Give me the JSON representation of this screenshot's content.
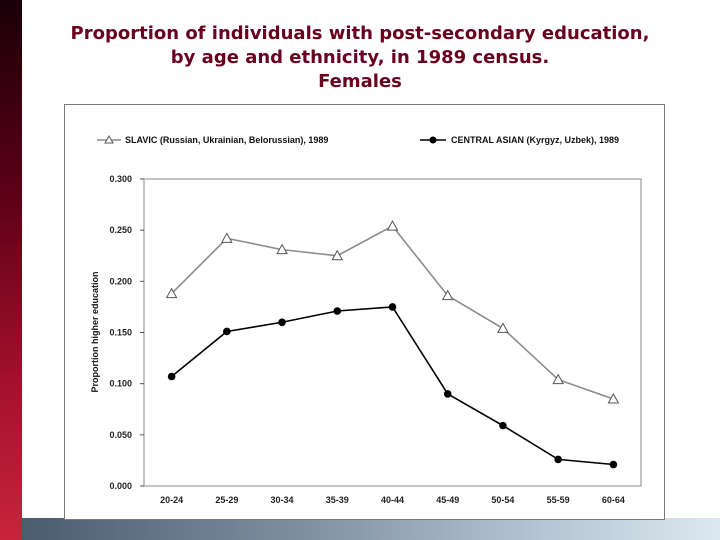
{
  "title_lines": [
    "Proportion of individuals with post-secondary education,",
    "by age and ethnicity, in 1989 census.",
    "Females"
  ],
  "colors": {
    "title": "#6a0020",
    "slavic": "#8c8c8c",
    "central_asian": "#000000"
  },
  "chart_data": {
    "type": "line",
    "title": "Proportion of individuals with post-secondary education, by age and ethnicity, in 1989 census. Females",
    "xlabel": "",
    "ylabel": "Proportion higher education",
    "categories": [
      "20-24",
      "25-29",
      "30-34",
      "35-39",
      "40-44",
      "45-49",
      "50-54",
      "55-59",
      "60-64"
    ],
    "ylim": [
      0,
      0.3
    ],
    "yticks": [
      "0.000",
      "0.050",
      "0.100",
      "0.150",
      "0.200",
      "0.250",
      "0.300"
    ],
    "grid": false,
    "legend_position": "top",
    "series": [
      {
        "name": "SLAVIC (Russian, Ukrainian, Belorussian), 1989",
        "marker": "triangle-open",
        "values": [
          0.188,
          0.242,
          0.231,
          0.225,
          0.254,
          0.186,
          0.154,
          0.104,
          0.085
        ]
      },
      {
        "name": "CENTRAL ASIAN (Kyrgyz, Uzbek), 1989",
        "marker": "circle-filled",
        "values": [
          0.107,
          0.151,
          0.16,
          0.171,
          0.175,
          0.09,
          0.059,
          0.026,
          0.021
        ]
      }
    ]
  }
}
